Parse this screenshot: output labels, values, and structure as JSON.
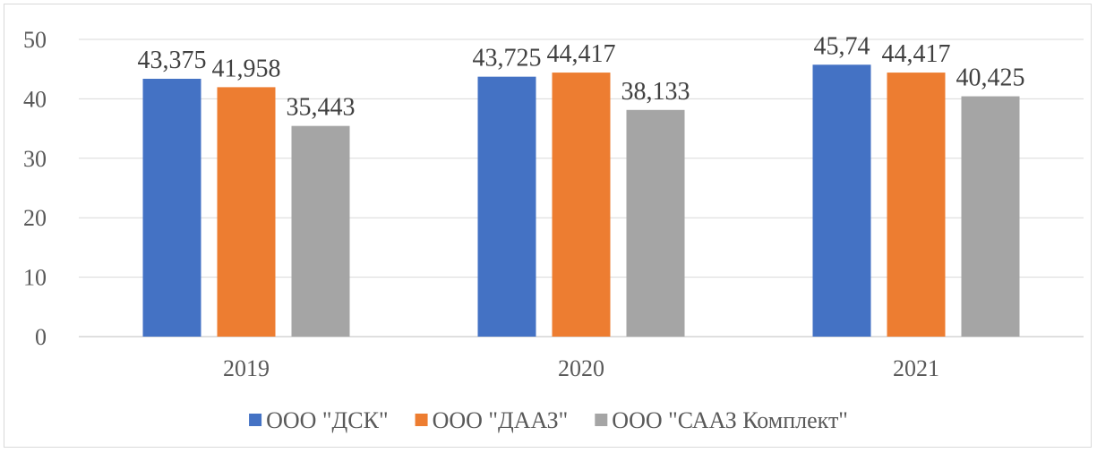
{
  "chart_data": {
    "type": "bar",
    "categories": [
      "2019",
      "2020",
      "2021"
    ],
    "series": [
      {
        "name": "ООО \"ДСК\"",
        "color": "#4472c4",
        "values": [
          43.375,
          43.725,
          45.74
        ],
        "labels": [
          "43,375",
          "43,725",
          "45,74"
        ]
      },
      {
        "name": "ООО \"ДААЗ\"",
        "color": "#ed7d31",
        "values": [
          41.958,
          44.417,
          44.417
        ],
        "labels": [
          "41,958",
          "44,417",
          "44,417"
        ]
      },
      {
        "name": "ООО \"СААЗ Комплект\"",
        "color": "#a5a5a5",
        "values": [
          35.443,
          38.133,
          40.425
        ],
        "labels": [
          "35,443",
          "38,133",
          "40,425"
        ]
      }
    ],
    "ylim": [
      0,
      50
    ],
    "yticks": [
      0,
      10,
      20,
      30,
      40,
      50
    ],
    "grid": true,
    "legend_position": "bottom"
  }
}
